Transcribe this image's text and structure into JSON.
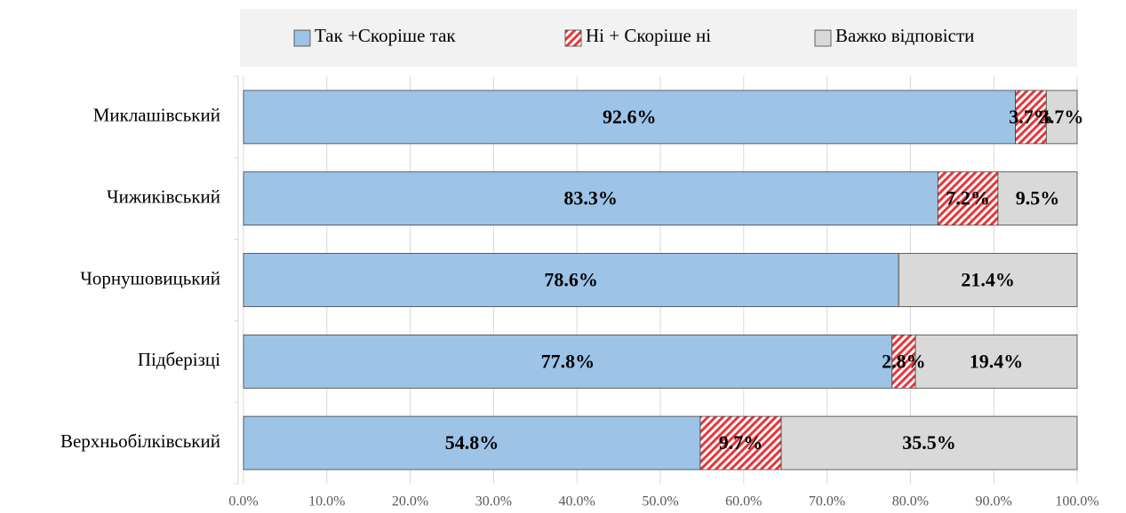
{
  "chart_data": {
    "type": "stacked_bar_horizontal",
    "categories": [
      "Миклашівський",
      "Чижиківський",
      "Чорнушовицький",
      "Підберізці",
      "Верхньобілківський"
    ],
    "series": [
      {
        "name": "Так +Скоріше так",
        "color": "#9dc3e6",
        "values": [
          92.6,
          83.3,
          78.6,
          77.8,
          54.8
        ],
        "value_labels": [
          "92.6%",
          "83.3%",
          "78.6%",
          "77.8%",
          "54.8%"
        ]
      },
      {
        "name": "Ні + Скоріше ні",
        "color": "#e8353a",
        "values": [
          3.7,
          7.2,
          null,
          2.8,
          9.7
        ],
        "value_labels": [
          "3.7%",
          "7.2%",
          null,
          "2.8%",
          "9.7%"
        ]
      },
      {
        "name": "Важко відповісти",
        "color": "#d9d9d9",
        "values": [
          3.7,
          9.5,
          21.4,
          19.4,
          35.5
        ],
        "value_labels": [
          "3.7%",
          "9.5%",
          "21.4%",
          "19.4%",
          "35.5%"
        ]
      }
    ],
    "xlim": [
      0,
      100
    ],
    "xticks": [
      {
        "value": 0,
        "label": "0.0%"
      },
      {
        "value": 10,
        "label": "10.0%"
      },
      {
        "value": 20,
        "label": "20.0%"
      },
      {
        "value": 30,
        "label": "30.0%"
      },
      {
        "value": 40,
        "label": "40.0%"
      },
      {
        "value": 50,
        "label": "50.0%"
      },
      {
        "value": 60,
        "label": "60.0%"
      },
      {
        "value": 70,
        "label": "70.0%"
      },
      {
        "value": 80,
        "label": "80.0%"
      },
      {
        "value": 90,
        "label": "90.0%"
      },
      {
        "value": 100,
        "label": "100.0%"
      }
    ],
    "grid": true,
    "legend": "top"
  }
}
